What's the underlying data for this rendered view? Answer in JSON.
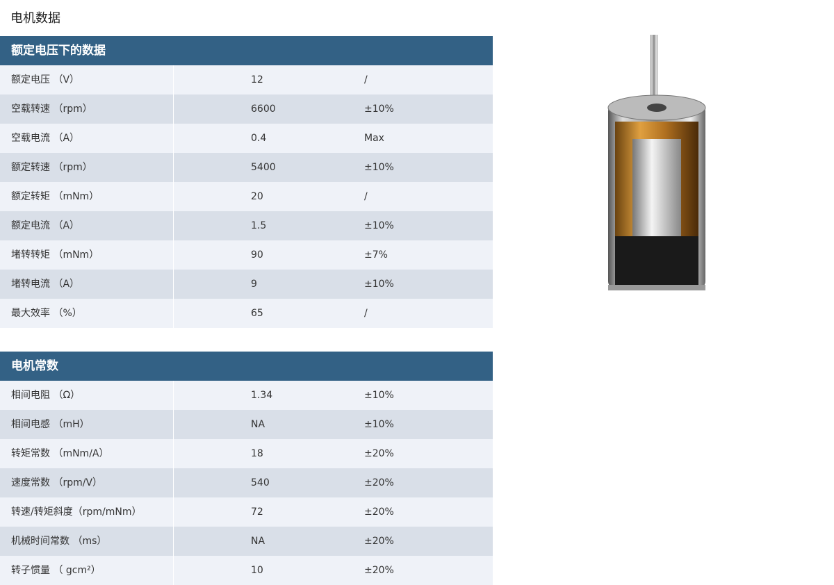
{
  "title": "电机数据",
  "tables": [
    {
      "heading": "额定电压下的数据",
      "rows": [
        [
          "额定电压 （V）",
          "12",
          "/"
        ],
        [
          "空载转速 （rpm）",
          "6600",
          "±10%"
        ],
        [
          "空载电流 （A）",
          "0.4",
          "Max"
        ],
        [
          "额定转速 （rpm）",
          "5400",
          "±10%"
        ],
        [
          "额定转矩 （mNm）",
          "20",
          "/"
        ],
        [
          "额定电流 （A）",
          "1.5",
          "±10%"
        ],
        [
          "堵转转矩 （mNm）",
          "90",
          "±7%"
        ],
        [
          "堵转电流 （A）",
          "9",
          "±10%"
        ],
        [
          "最大效率 （%）",
          "65",
          "/"
        ]
      ]
    },
    {
      "heading": "电机常数",
      "rows": [
        [
          "相间电阻 （Ω）",
          "1.34",
          "±10%"
        ],
        [
          "相间电感 （mH）",
          "NA",
          "±10%"
        ],
        [
          "转矩常数 （mNm/A）",
          "18",
          "±20%"
        ],
        [
          "速度常数 （rpm/V）",
          "540",
          "±20%"
        ],
        [
          "转速/转矩斜度（rpm/mNm）",
          "72",
          "±20%"
        ],
        [
          "机械时间常数 （ms）",
          "NA",
          "±20%"
        ],
        [
          "转子惯量 （ gcm²）",
          "10",
          "±20%"
        ]
      ]
    }
  ],
  "colors": {
    "header": "#336185",
    "row_light": "#eff2f8",
    "row_dark": "#d9dfe8"
  }
}
